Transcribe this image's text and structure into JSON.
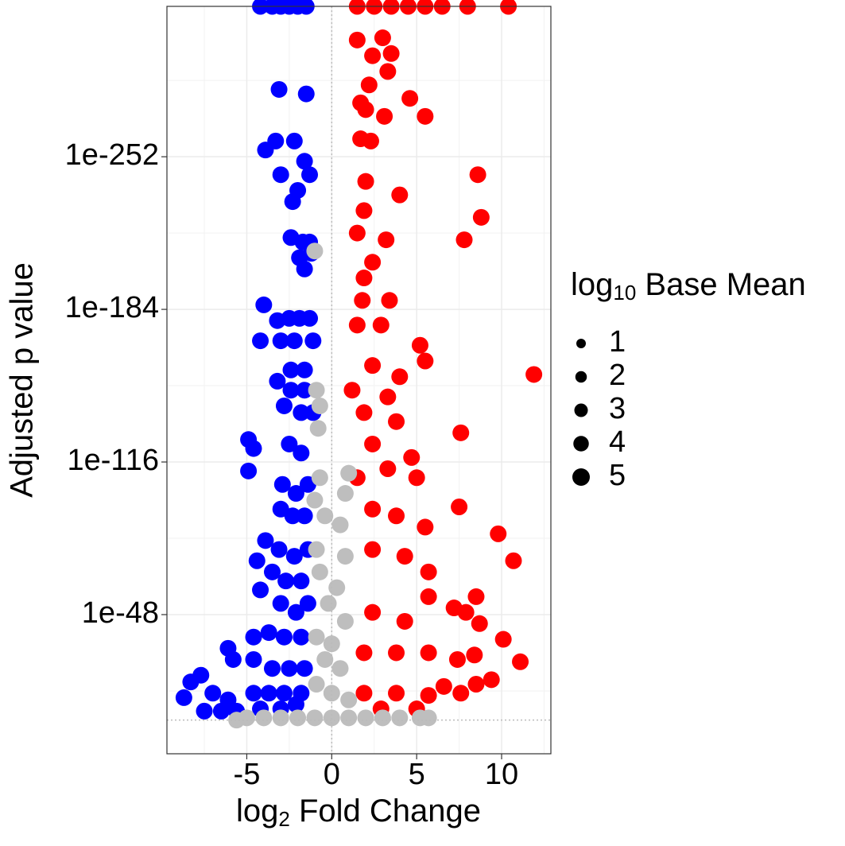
{
  "chart_data": {
    "type": "scatter",
    "xlabel": {
      "base": "log",
      "sub": "2",
      "rest": " Fold Change"
    },
    "ylabel": "Adjusted p value",
    "legend": {
      "title": {
        "base": "log",
        "sub": "10",
        "rest": " Base Mean"
      },
      "values": [
        1,
        2,
        3,
        4,
        5
      ]
    },
    "xlim": [
      -9.7,
      12.9
    ],
    "xticks": [
      -5,
      0,
      5,
      10
    ],
    "ylim": [
      100000000000000.0,
      1e-319
    ],
    "log_y": true,
    "yticks": [
      {
        "value": 1e-252,
        "label": "1e-252"
      },
      {
        "value": 1e-184,
        "label": "1e-184"
      },
      {
        "value": 1e-116,
        "label": "1e-116"
      },
      {
        "value": 1e-48,
        "label": "1e-48"
      }
    ],
    "grid": true,
    "threshold_lines": {
      "x": 0,
      "y": 0.1
    },
    "series": [
      {
        "color": "#0000ff",
        "x": [
          -4.2,
          -3.5,
          -3.0,
          -2.5,
          -2.0,
          -1.5,
          -3.1,
          -1.5,
          -3.9,
          -3.3,
          -2.2,
          -1.6,
          -3.0,
          -1.3,
          -2.0,
          -2.3,
          -2.4,
          -1.7,
          -1.3,
          -1.9,
          -1.6,
          -1.2,
          -4.0,
          -3.2,
          -2.5,
          -1.9,
          -1.3,
          -4.2,
          -3.0,
          -2.2,
          -1.1,
          -2.4,
          -1.6,
          -3.2,
          -2.4,
          -1.6,
          -2.8,
          -1.8,
          -1.1,
          -4.9,
          -4.6,
          -4.9,
          -2.5,
          -1.8,
          -2.9,
          -2.1,
          -1.4,
          -3.0,
          -2.3,
          -1.6,
          -3.9,
          -3.1,
          -2.2,
          -1.4,
          -4.4,
          -3.5,
          -2.7,
          -1.8,
          -4.2,
          -3.0,
          -2.1,
          -1.4,
          -4.6,
          -3.7,
          -2.8,
          -1.8,
          -5.8,
          -6.1,
          -4.6,
          -3.5,
          -2.5,
          -1.6,
          -7.7,
          -8.3,
          -8.7,
          -7.0,
          -6.1,
          -7.5,
          -6.5,
          -5.6,
          -4.6,
          -3.7,
          -2.8,
          -1.8,
          -4.2,
          -3.0,
          -2.1
        ],
        "values": [
          1e-319,
          1e-319,
          1e-319,
          1e-319,
          1e-319,
          1e-319,
          1e-282,
          1e-280,
          1e-255,
          1e-259,
          1e-259,
          1e-250,
          1e-244,
          1e-244,
          1e-237,
          1e-232,
          1e-216,
          1e-214,
          1e-214,
          1e-207,
          1e-202,
          1e-209,
          1e-186,
          1e-179,
          1e-180,
          1e-180,
          1e-180,
          1e-170,
          1e-170,
          1e-170,
          1e-170,
          1e-157,
          1e-157,
          1e-152,
          1e-148,
          1e-148,
          1e-141,
          1e-138,
          1e-138,
          1e-126,
          1e-122,
          1e-112,
          1e-124,
          1e-120,
          1e-106,
          1e-102,
          1e-106,
          1e-95,
          1e-92,
          1e-92,
          1e-81,
          1e-77,
          1e-74,
          1e-77,
          1e-72,
          1e-67,
          1e-63,
          1e-63,
          1e-59,
          1e-53,
          1e-49,
          1e-53,
          1e-38,
          1e-40,
          1e-38,
          1e-38,
          1e-28,
          1e-33,
          1e-28,
          1e-24,
          1e-24,
          1e-24,
          1e-21,
          1e-18,
          1e-11,
          1e-13,
          1e-10,
          1e-05,
          1e-05,
          1e-05,
          1e-13,
          1e-13,
          1e-13,
          1e-13,
          1e-06,
          1e-06,
          1e-08
        ]
      },
      {
        "color": "#ff0000",
        "x": [
          1.5,
          2.5,
          3.5,
          4.5,
          5.5,
          6.5,
          8.0,
          10.4,
          1.5,
          3.0,
          2.4,
          3.5,
          3.3,
          2.2,
          1.7,
          4.6,
          5.5,
          3.1,
          2.0,
          2.3,
          1.7,
          8.6,
          2.0,
          4.0,
          8.8,
          7.8,
          3.2,
          1.9,
          1.5,
          2.4,
          1.9,
          3.4,
          1.8,
          1.5,
          2.9,
          5.2,
          5.5,
          11.9,
          2.4,
          1.2,
          4.0,
          3.3,
          1.9,
          3.8,
          7.6,
          2.4,
          4.7,
          3.3,
          5.0,
          1.5,
          7.5,
          2.4,
          3.8,
          5.5,
          9.8,
          10.7,
          2.4,
          4.3,
          5.7,
          8.5,
          7.2,
          7.9,
          8.7,
          2.4,
          4.3,
          5.7,
          10.1,
          11.1,
          8.4,
          7.4,
          5.7,
          3.8,
          1.9,
          9.4,
          8.5,
          6.6,
          7.6,
          5.7,
          3.8,
          1.9,
          5.0,
          2.9
        ],
        "values": [
          1e-319,
          1e-319,
          1e-319,
          1e-319,
          1e-319,
          1e-319,
          1e-319,
          1e-319,
          1e-304,
          1e-305,
          1e-297,
          1e-298,
          1e-290,
          1e-284,
          1e-276,
          1e-278,
          1e-270,
          1e-270,
          1e-273,
          1e-259,
          1e-260,
          1e-244,
          1e-241,
          1e-235,
          1e-225,
          1e-215,
          1e-215,
          1e-228,
          1e-218,
          1e-205,
          1e-198,
          1e-188,
          1e-188,
          1e-177,
          1e-177,
          1e-168,
          1e-161,
          1e-155,
          1e-159,
          1e-148,
          1e-154,
          1e-145,
          1e-138,
          1e-134,
          1e-129,
          1e-124,
          1e-118,
          1e-113,
          1e-109,
          1e-109,
          1e-96,
          1e-95,
          1e-92,
          1e-87,
          1e-84,
          1e-72,
          1e-77,
          1e-74,
          1e-67,
          1e-56,
          1e-51,
          1e-49,
          1e-44,
          1e-49,
          1e-45,
          1e-56,
          1e-37,
          1e-27,
          1e-30,
          1e-28,
          1e-31,
          1e-31,
          1e-31,
          1e-19,
          1e-17,
          1e-16,
          1e-13,
          1e-12,
          1e-13,
          1e-13,
          1e-06,
          1e-06
        ]
      },
      {
        "color": "#bebebe",
        "x": [
          -1.0,
          -0.9,
          -0.7,
          -0.8,
          -0.7,
          -1.0,
          1.0,
          0.8,
          -0.4,
          0.5,
          -0.9,
          0.8,
          -0.7,
          0.3,
          -0.2,
          0.8,
          -0.9,
          0.0,
          -0.4,
          0.5,
          -0.9,
          0.0,
          1.0,
          -5.0,
          -4.0,
          -3.0,
          -2.0,
          -1.0,
          0.0,
          1.0,
          2.0,
          3.0,
          4.0,
          5.2,
          -5.6,
          5.7
        ],
        "values": [
          1e-210,
          1e-148,
          1e-141,
          1e-131,
          1e-109,
          1e-99,
          1e-111,
          1e-102,
          1e-92,
          1e-88,
          1e-77,
          1e-74,
          1e-67,
          1e-60,
          1e-53,
          1e-45,
          1e-38,
          1e-35,
          1e-28,
          1e-24,
          1e-17,
          1e-13,
          1e-10,
          0.01,
          0.01,
          0.01,
          0.01,
          0.01,
          0.01,
          0.01,
          0.01,
          0.01,
          0.01,
          0.01,
          0.1,
          0.01
        ]
      }
    ]
  }
}
